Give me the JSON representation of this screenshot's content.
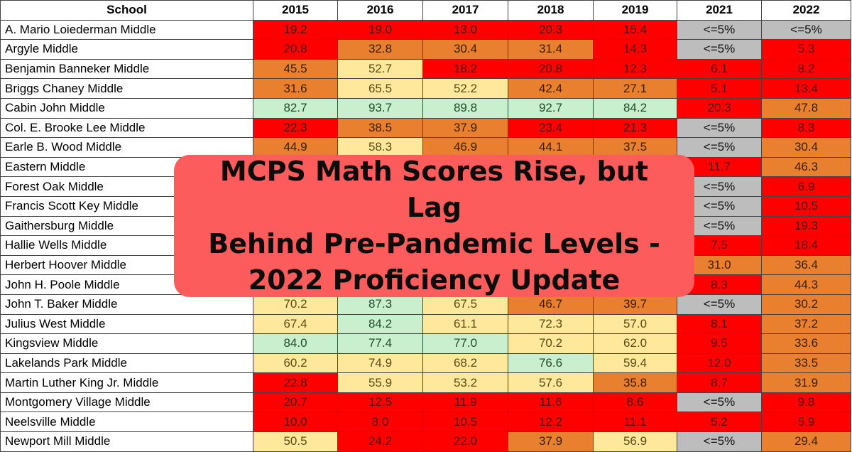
{
  "table": {
    "headers": [
      "School",
      "2015",
      "2016",
      "2017",
      "2018",
      "2019",
      "2021",
      "2022"
    ],
    "rows": [
      {
        "name": "A. Mario Loiederman Middle",
        "values": [
          "19.2",
          "19.0",
          "13.0",
          "20.3",
          "15.4",
          "<=5%",
          "<=5%"
        ],
        "colors": [
          "red",
          "red",
          "red",
          "red",
          "red",
          "gry",
          "gry"
        ]
      },
      {
        "name": "Argyle Middle",
        "values": [
          "20.8",
          "32.8",
          "30.4",
          "31.4",
          "14.3",
          "<=5%",
          "5.3"
        ],
        "colors": [
          "red",
          "org",
          "org",
          "org",
          "red",
          "gry",
          "red"
        ]
      },
      {
        "name": "Benjamin Banneker Middle",
        "values": [
          "45.5",
          "52.7",
          "18.2",
          "20.8",
          "12.3",
          "6.1",
          "8.2"
        ],
        "colors": [
          "org",
          "yel",
          "red",
          "red",
          "red",
          "red",
          "red"
        ]
      },
      {
        "name": "Briggs Chaney Middle",
        "values": [
          "31.6",
          "65.5",
          "52.2",
          "42.4",
          "27.1",
          "5.1",
          "13.4"
        ],
        "colors": [
          "org",
          "yel",
          "yel",
          "org",
          "org",
          "red",
          "red"
        ]
      },
      {
        "name": "Cabin John Middle",
        "values": [
          "82.7",
          "93.7",
          "89.8",
          "92.7",
          "84.2",
          "20.3",
          "47.8"
        ],
        "colors": [
          "grn",
          "grn",
          "grn",
          "grn",
          "grn",
          "red",
          "org"
        ]
      },
      {
        "name": "Col. E. Brooke Lee Middle",
        "values": [
          "22.3",
          "38.5",
          "37.9",
          "23.4",
          "21.3",
          "<=5%",
          "8.3"
        ],
        "colors": [
          "red",
          "org",
          "org",
          "red",
          "red",
          "gry",
          "red"
        ]
      },
      {
        "name": "Earle B. Wood Middle",
        "values": [
          "44.9",
          "58.3",
          "46.9",
          "44.1",
          "37.5",
          "<=5%",
          "30.4"
        ],
        "colors": [
          "org",
          "yel",
          "org",
          "org",
          "org",
          "gry",
          "org"
        ]
      },
      {
        "name": "Eastern Middle",
        "values": [
          "",
          "",
          "",
          "",
          "",
          "11.7",
          "46.3"
        ],
        "colors": [
          "org",
          "yel",
          "org",
          "org",
          "org",
          "red",
          "org"
        ]
      },
      {
        "name": "Forest Oak Middle",
        "values": [
          "",
          "",
          "",
          "",
          "",
          "<=5%",
          "6.9"
        ],
        "colors": [
          "red",
          "org",
          "red",
          "red",
          "red",
          "gry",
          "red"
        ]
      },
      {
        "name": "Francis Scott Key Middle",
        "values": [
          "",
          "",
          "",
          "",
          "",
          "<=5%",
          "10.5"
        ],
        "colors": [
          "red",
          "org",
          "red",
          "red",
          "red",
          "gry",
          "red"
        ]
      },
      {
        "name": "Gaithersburg Middle",
        "values": [
          "",
          "",
          "",
          "",
          "",
          "<=5%",
          "19.3"
        ],
        "colors": [
          "red",
          "org",
          "org",
          "red",
          "red",
          "gry",
          "red"
        ]
      },
      {
        "name": "Hallie Wells Middle",
        "values": [
          "",
          "",
          "",
          "",
          "",
          "7.5",
          "18.4"
        ],
        "colors": [
          "org",
          "yel",
          "yel",
          "org",
          "org",
          "red",
          "red"
        ]
      },
      {
        "name": "Herbert Hoover Middle",
        "values": [
          "",
          "",
          "",
          "",
          ".0",
          "31.0",
          "36.4"
        ],
        "colors": [
          "grn",
          "grn",
          "grn",
          "grn",
          "grn",
          "org",
          "org"
        ]
      },
      {
        "name": "John H. Poole Middle",
        "values": [
          "",
          "",
          "",
          "",
          ".2",
          "8.3",
          "44.3"
        ],
        "colors": [
          "yel",
          "yel",
          "yel",
          "yel",
          "yel",
          "red",
          "org"
        ]
      },
      {
        "name": "John T. Baker Middle",
        "values": [
          "70.2",
          "87.3",
          "67.5",
          "46.7",
          "39.7",
          "<=5%",
          "30.2"
        ],
        "colors": [
          "yel",
          "grn",
          "yel",
          "org",
          "org",
          "gry",
          "org"
        ]
      },
      {
        "name": "Julius West Middle",
        "values": [
          "67.4",
          "84.2",
          "61.1",
          "72.3",
          "57.0",
          "8.1",
          "37.2"
        ],
        "colors": [
          "yel",
          "grn",
          "yel",
          "yel",
          "yel",
          "red",
          "org"
        ]
      },
      {
        "name": "Kingsview Middle",
        "values": [
          "84.0",
          "77.4",
          "77.0",
          "70.2",
          "62.0",
          "9.5",
          "33.6"
        ],
        "colors": [
          "grn",
          "grn",
          "grn",
          "yel",
          "yel",
          "red",
          "org"
        ]
      },
      {
        "name": "Lakelands Park Middle",
        "values": [
          "60.2",
          "74.9",
          "68.2",
          "76.6",
          "59.4",
          "12.0",
          "33.5"
        ],
        "colors": [
          "yel",
          "yel",
          "yel",
          "grn",
          "yel",
          "red",
          "org"
        ]
      },
      {
        "name": "Martin Luther King Jr. Middle",
        "values": [
          "22.8",
          "55.9",
          "53.2",
          "57.6",
          "35.8",
          "8.7",
          "31.9"
        ],
        "colors": [
          "red",
          "yel",
          "yel",
          "yel",
          "org",
          "red",
          "org"
        ]
      },
      {
        "name": "Montgomery Village Middle",
        "values": [
          "20.7",
          "12.5",
          "11.9",
          "11.6",
          "8.6",
          "<=5%",
          "9.8"
        ],
        "colors": [
          "red",
          "red",
          "red",
          "red",
          "red",
          "gry",
          "red"
        ]
      },
      {
        "name": "Neelsville Middle",
        "values": [
          "10.0",
          "8.0",
          "10.5",
          "12.2",
          "11.1",
          "5.2",
          "5.9"
        ],
        "colors": [
          "red",
          "red",
          "red",
          "red",
          "red",
          "red",
          "red"
        ]
      },
      {
        "name": "Newport Mill Middle",
        "values": [
          "50.5",
          "24.2",
          "22.0",
          "37.9",
          "56.9",
          "<=5%",
          "29.4"
        ],
        "colors": [
          "yel",
          "red",
          "red",
          "org",
          "yel",
          "gry",
          "org"
        ]
      }
    ]
  },
  "banner": {
    "line1": "MCPS Math Scores Rise, but Lag",
    "line2": "Behind Pre-Pandemic Levels -",
    "line3": "2022 Proficiency Update"
  },
  "colors": {
    "red": "#ff0000",
    "orange": "#e8802f",
    "yellow": "#fde89c",
    "green": "#c9efcf",
    "gray": "#bdbdbd",
    "banner": "#fd5c5c"
  }
}
